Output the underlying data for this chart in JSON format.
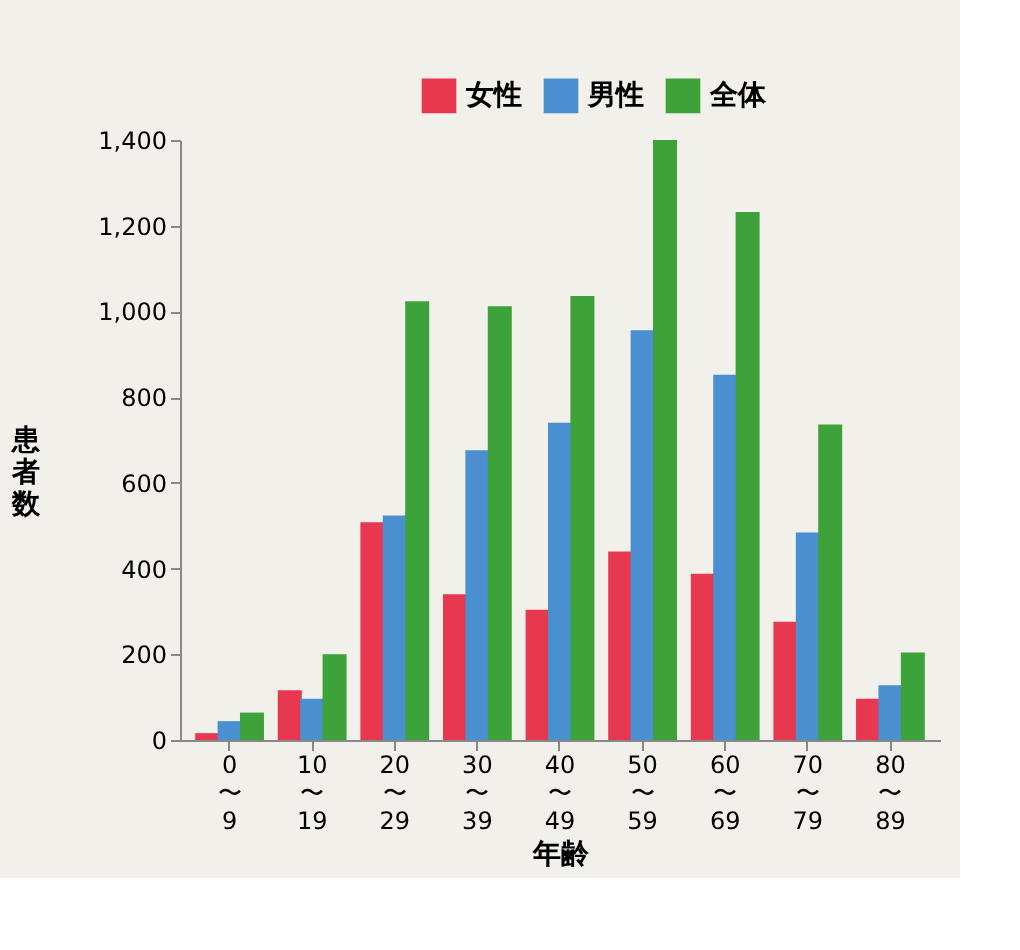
{
  "chart_data": {
    "type": "bar",
    "xlabel": "年齢",
    "ylabel": "患者数",
    "categories": [
      "0\n〜\n9",
      "10\n〜\n19",
      "20\n〜\n29",
      "30\n〜\n39",
      "40\n〜\n49",
      "50\n〜\n59",
      "60\n〜\n69",
      "70\n〜\n79",
      "80\n〜\n89"
    ],
    "series": [
      {
        "name": "女性",
        "color": "#e8384f",
        "values": [
          16,
          116,
          508,
          340,
          304,
          440,
          388,
          276,
          96
        ]
      },
      {
        "name": "男性",
        "color": "#4a90d0",
        "values": [
          44,
          96,
          524,
          676,
          740,
          956,
          852,
          484,
          128
        ]
      },
      {
        "name": "全体",
        "color": "#3ea23a",
        "values": [
          64,
          200,
          1024,
          1012,
          1036,
          1400,
          1232,
          736,
          204
        ]
      }
    ],
    "ylim": [
      0,
      1400
    ],
    "yticks": [
      0,
      200,
      400,
      600,
      800,
      {
        "value": 1000,
        "label": "1,000"
      },
      {
        "value": 1200,
        "label": "1,200"
      },
      {
        "value": 1400,
        "label": "1,400"
      }
    ],
    "grid": false,
    "legend": "top right"
  }
}
